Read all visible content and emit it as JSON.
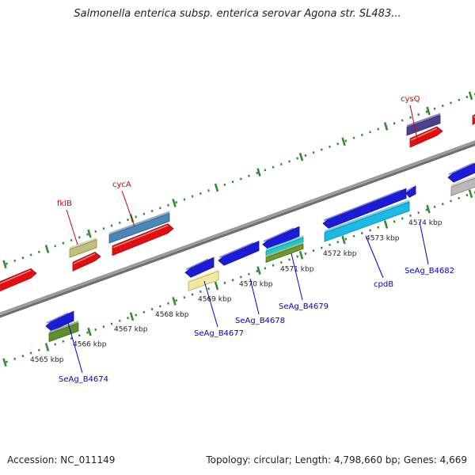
{
  "title": "Salmonella enterica subsp. enterica serovar Agona str. SL483...",
  "footer": {
    "accession": "Accession: NC_011149",
    "summary": "Topology: circular; Length: 4,798,660 bp; Genes: 4,669"
  },
  "colors": {
    "backbone": "#8a8a8a",
    "tick": "#2e8b2e",
    "forward_label": "#cc0000",
    "reverse_label": "#0000cc",
    "kbp_text": "#222222"
  },
  "diagram_data": {
    "kbp_ticks": [
      {
        "label": "4565 kbp"
      },
      {
        "label": "4566 kbp"
      },
      {
        "label": "4567 kbp"
      },
      {
        "label": "4568 kbp"
      },
      {
        "label": "4569 kbp"
      },
      {
        "label": "4570 kbp"
      },
      {
        "label": "4571 kbp"
      },
      {
        "label": "4572 kbp"
      },
      {
        "label": "4573 kbp"
      },
      {
        "label": "4574 kbp"
      }
    ],
    "genes": [
      {
        "name": "fklB",
        "strand": "forward",
        "color": "#c3bf7f"
      },
      {
        "name": "cycA",
        "strand": "forward",
        "color": "#4a86b8"
      },
      {
        "name": "cysQ",
        "strand": "forward",
        "color": "#4c3f8c"
      },
      {
        "name": "SeAg_B4674",
        "strand": "reverse",
        "color": "#5e8e2e"
      },
      {
        "name": "SeAg_B4677",
        "strand": "reverse",
        "color": "#f3eaa2"
      },
      {
        "name": "SeAg_B4678",
        "strand": "reverse",
        "color": "#1c1cd6"
      },
      {
        "name": "SeAg_B4679",
        "strand": "reverse",
        "color": "#6e9832"
      },
      {
        "name": "cpdB",
        "strand": "reverse",
        "color": "#1cb8e6"
      },
      {
        "name": "SeAg_B4682",
        "strand": "reverse",
        "color": "#b8b8b8"
      }
    ]
  }
}
